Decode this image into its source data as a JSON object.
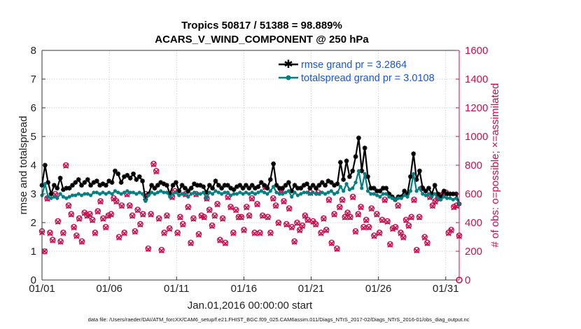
{
  "chart_data": {
    "type": "line",
    "title_line1": "Tropics 50817 / 51388 = 98.889%",
    "title_line2": "ACARS_V_WIND_COMPONENT @ 250 hPa",
    "xlabel": "Jan.01,2016 00:00:00 start",
    "ylabel_left": "rmse and totalspread",
    "ylabel_right": "# of obs: o=possible; ×=assimilated",
    "xlim": [
      1,
      32
    ],
    "ylim_left": [
      0,
      8
    ],
    "ylim_right": [
      0,
      1600
    ],
    "x_tick_values": [
      1,
      6,
      11,
      16,
      21,
      26,
      31
    ],
    "x_tick_labels": [
      "01/01",
      "01/06",
      "01/11",
      "01/16",
      "01/21",
      "01/26",
      "01/31"
    ],
    "y_ticks_left": [
      "0",
      "1",
      "2",
      "3",
      "4",
      "5",
      "6",
      "7",
      "8"
    ],
    "y_ticks_right": [
      "0",
      "200",
      "400",
      "600",
      "800",
      "1000",
      "1200",
      "1400",
      "1600"
    ],
    "footer": "data file: /Users/raeder/DAI/ATM_forcXX/CAM6_setup/f.e21.FHIST_BGC.f09_025.CAM6assim.011/Diags_NTrS_2017-02/Diags_NTrS_2016-01/obs_diag_output.nc",
    "series": [
      {
        "name": "rmse grand pr = 3.2864",
        "color": "#000000",
        "marker": "star",
        "values": [
          3.3,
          4.0,
          3.4,
          3.0,
          3.3,
          3.2,
          3.55,
          3.15,
          3.2,
          3.2,
          3.3,
          3.4,
          3.5,
          3.3,
          3.4,
          3.5,
          3.3,
          3.4,
          3.45,
          3.3,
          3.35,
          3.3,
          3.45,
          3.4,
          3.8,
          3.7,
          3.4,
          3.6,
          3.65,
          3.55,
          3.7,
          3.5,
          3.6,
          3.45,
          2.8,
          3.0,
          3.3,
          3.2,
          3.3,
          3.4,
          3.35,
          3.3,
          3.0,
          3.3,
          3.4,
          3.1,
          3.3,
          3.2,
          3.1,
          3.2,
          3.35,
          3.3,
          3.3,
          3.25,
          3.05,
          3.3,
          3.2,
          3.45,
          3.3,
          3.2,
          3.3,
          3.3,
          3.2,
          3.15,
          3.25,
          3.3,
          3.2,
          3.3,
          3.2,
          3.3,
          3.2,
          3.25,
          3.4,
          3.3,
          3.2,
          3.5,
          4.05,
          3.3,
          3.2,
          3.2,
          3.3,
          3.4,
          3.1,
          3.3,
          3.2,
          3.2,
          3.3,
          3.35,
          3.2,
          3.3,
          3.2,
          3.3,
          3.4,
          3.3,
          3.45,
          3.4,
          3.3,
          3.35,
          4.1,
          3.5,
          4.15,
          3.6,
          3.8,
          4.3,
          4.95,
          3.8,
          4.6,
          3.6,
          3.2,
          3.2,
          3.1,
          3.1,
          3.2,
          3.2,
          3.0,
          2.9,
          2.8,
          2.9,
          2.9,
          3.1,
          3.0,
          3.6,
          4.4,
          3.5,
          3.8,
          3.2,
          3.1,
          3.2,
          3.0,
          3.3,
          3.0,
          2.9,
          3.1,
          3.0,
          3.0,
          3.0,
          3.0,
          2.65
        ]
      },
      {
        "name": "totalspread grand pr = 3.0108",
        "color": "#008080",
        "marker": "dot",
        "values": [
          2.95,
          3.35,
          2.9,
          2.85,
          2.9,
          2.85,
          3.0,
          2.9,
          2.85,
          2.9,
          2.95,
          2.95,
          3.0,
          2.95,
          3.0,
          3.0,
          2.95,
          3.05,
          3.05,
          3.0,
          3.05,
          3.0,
          3.05,
          3.0,
          3.1,
          3.05,
          3.0,
          3.05,
          3.1,
          3.05,
          3.05,
          3.0,
          3.05,
          3.0,
          2.75,
          2.95,
          3.05,
          3.0,
          3.05,
          3.1,
          3.05,
          3.05,
          2.9,
          3.0,
          3.05,
          2.95,
          3.0,
          3.0,
          2.9,
          3.0,
          3.05,
          3.0,
          3.0,
          3.05,
          2.85,
          3.05,
          3.0,
          3.1,
          3.05,
          3.0,
          3.05,
          3.05,
          2.95,
          3.0,
          3.0,
          3.05,
          3.0,
          3.05,
          3.0,
          3.05,
          3.0,
          3.05,
          3.1,
          3.05,
          3.0,
          3.1,
          3.25,
          3.05,
          3.0,
          3.0,
          3.05,
          3.1,
          2.9,
          3.05,
          2.95,
          3.0,
          3.05,
          3.05,
          3.0,
          3.05,
          3.0,
          3.0,
          3.05,
          3.0,
          3.05,
          3.1,
          3.0,
          3.05,
          3.25,
          3.1,
          3.35,
          3.15,
          3.2,
          3.4,
          3.8,
          3.2,
          3.7,
          3.1,
          3.0,
          3.0,
          2.95,
          2.9,
          3.0,
          3.0,
          2.9,
          2.85,
          2.8,
          2.85,
          2.85,
          2.95,
          2.9,
          3.1,
          3.7,
          3.1,
          3.2,
          3.0,
          2.95,
          3.0,
          2.9,
          3.0,
          2.85,
          2.8,
          2.9,
          2.85,
          2.85,
          2.8,
          2.85,
          2.65
        ]
      }
    ],
    "obs_possible": [
      340,
      200,
      570,
      330,
      280,
      600,
      410,
      270,
      330,
      800,
      520,
      460,
      370,
      310,
      430,
      270,
      470,
      450,
      460,
      420,
      330,
      480,
      550,
      430,
      370,
      450,
      460,
      570,
      550,
      300,
      520,
      330,
      600,
      520,
      450,
      340,
      490,
      390,
      460,
      600,
      220,
      460,
      810,
      760,
      430,
      210,
      330,
      450,
      360,
      580,
      620,
      330,
      440,
      390,
      600,
      510,
      260,
      430,
      600,
      320,
      450,
      440,
      570,
      490,
      380,
      450,
      530,
      280,
      430,
      260,
      580,
      510,
      330,
      490,
      440,
      440,
      350,
      510,
      450,
      570,
      330,
      530,
      330,
      450,
      650,
      440,
      330,
      570,
      520,
      400,
      630,
      550,
      390,
      500,
      370,
      270,
      400,
      350,
      380,
      450,
      420,
      610,
      410,
      390,
      610,
      330,
      430,
      350,
      560,
      260,
      460,
      220,
      510,
      560,
      440,
      470,
      440,
      580,
      340,
      460,
      510,
      370,
      420,
      370,
      500,
      310,
      460,
      330,
      420,
      560,
      410,
      250,
      360,
      370,
      520,
      330,
      300,
      420,
      380,
      440,
      560,
      210,
      440,
      640,
      300,
      260,
      580,
      520,
      550,
      570,
      590,
      600,
      610,
      330,
      350,
      510,
      520,
      310
    ],
    "obs_assimilated": [
      330,
      200,
      565,
      325,
      275,
      595,
      405,
      265,
      325,
      795,
      515,
      455,
      365,
      305,
      425,
      265,
      465,
      445,
      455,
      415,
      325,
      475,
      545,
      425,
      365,
      445,
      455,
      565,
      545,
      295,
      515,
      325,
      595,
      515,
      445,
      335,
      485,
      385,
      455,
      595,
      215,
      455,
      805,
      755,
      425,
      205,
      325,
      445,
      355,
      575,
      615,
      325,
      435,
      385,
      595,
      505,
      255,
      425,
      595,
      315,
      445,
      435,
      565,
      485,
      375,
      445,
      525,
      275,
      425,
      255,
      575,
      505,
      325,
      485,
      435,
      435,
      345,
      505,
      445,
      565,
      325,
      525,
      325,
      445,
      645,
      435,
      325,
      565,
      515,
      395,
      625,
      545,
      385,
      495,
      365,
      265,
      395,
      345,
      375,
      445,
      415,
      605,
      405,
      385,
      605,
      325,
      425,
      345,
      555,
      255,
      455,
      215,
      505,
      555,
      435,
      465,
      435,
      575,
      335,
      455,
      505,
      365,
      415,
      365,
      495,
      305,
      455,
      325,
      415,
      555,
      405,
      245,
      355,
      365,
      515,
      325,
      295,
      415,
      375,
      435,
      555,
      205,
      435,
      635,
      295,
      255,
      575,
      515,
      545,
      565,
      585,
      595,
      605,
      325,
      345,
      505,
      515,
      305
    ]
  }
}
